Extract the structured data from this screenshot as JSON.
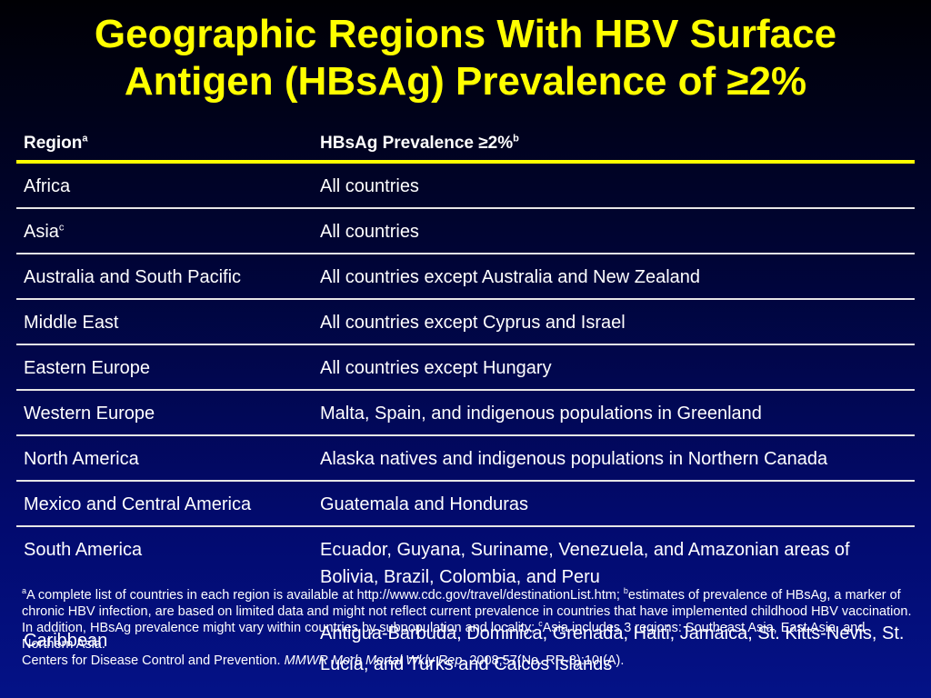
{
  "title": {
    "line1": "Geographic Regions With HBV Surface",
    "line2": "Antigen (HBsAg) Prevalence of ≥2%"
  },
  "table": {
    "header": {
      "region": "Region",
      "region_sup": "a",
      "prevalence": "HBsAg Prevalence ≥2%",
      "prevalence_sup": "b"
    },
    "rows": [
      {
        "region": "Africa",
        "region_sup": "",
        "prevalence": "All countries"
      },
      {
        "region": "Asia",
        "region_sup": "c",
        "prevalence": "All countries"
      },
      {
        "region": "Australia and South Pacific",
        "region_sup": "",
        "prevalence": "All countries except Australia and New Zealand"
      },
      {
        "region": "Middle East",
        "region_sup": "",
        "prevalence": "All countries except Cyprus and Israel"
      },
      {
        "region": "Eastern Europe",
        "region_sup": "",
        "prevalence": "All countries except Hungary"
      },
      {
        "region": "Western Europe",
        "region_sup": "",
        "prevalence": "Malta, Spain, and indigenous populations in Greenland"
      },
      {
        "region": "North America",
        "region_sup": "",
        "prevalence": "Alaska natives and indigenous populations in Northern Canada"
      },
      {
        "region": "Mexico and Central America",
        "region_sup": "",
        "prevalence": "Guatemala and Honduras"
      },
      {
        "region": "South America",
        "region_sup": "",
        "prevalence": "Ecuador, Guyana, Suriname, Venezuela, and Amazonian areas of Bolivia, Brazil, Colombia, and Peru"
      },
      {
        "region": "Caribbean",
        "region_sup": "",
        "prevalence": "Antigua-Barbuda, Dominica, Grenada, Haiti, Jamaica, St. Kitts-Nevis, St. Lucia, and Turks and Caicos Islands"
      }
    ]
  },
  "footnote": {
    "sup_a": "a",
    "text_a": "A complete list of countries in each region is available at http://www.cdc.gov/travel/destinationList.htm; ",
    "sup_b": "b",
    "text_b": "estimates of prevalence of HBsAg, a marker of chronic HBV infection, are based on limited data and might not reflect current prevalence in countries that have implemented childhood HBV vaccination. In addition, HBsAg prevalence might vary within countries by subpopulation and locality; ",
    "sup_c": "c",
    "text_c": "Asia includes 3 regions: Southeast Asia, East Asia, and Northern Asia.",
    "citation_prefix": "Centers for Disease Control and Prevention. ",
    "citation_journal": "MMWR Morb Mortal Wkly Rep",
    "citation_suffix": ". 2008;57(No. RR-8):10 (A)."
  },
  "colors": {
    "title": "#ffff00",
    "header_rule": "#ffff00",
    "row_rule": "#e6e6e6",
    "background_top": "#000004",
    "background_bottom": "#041287"
  }
}
